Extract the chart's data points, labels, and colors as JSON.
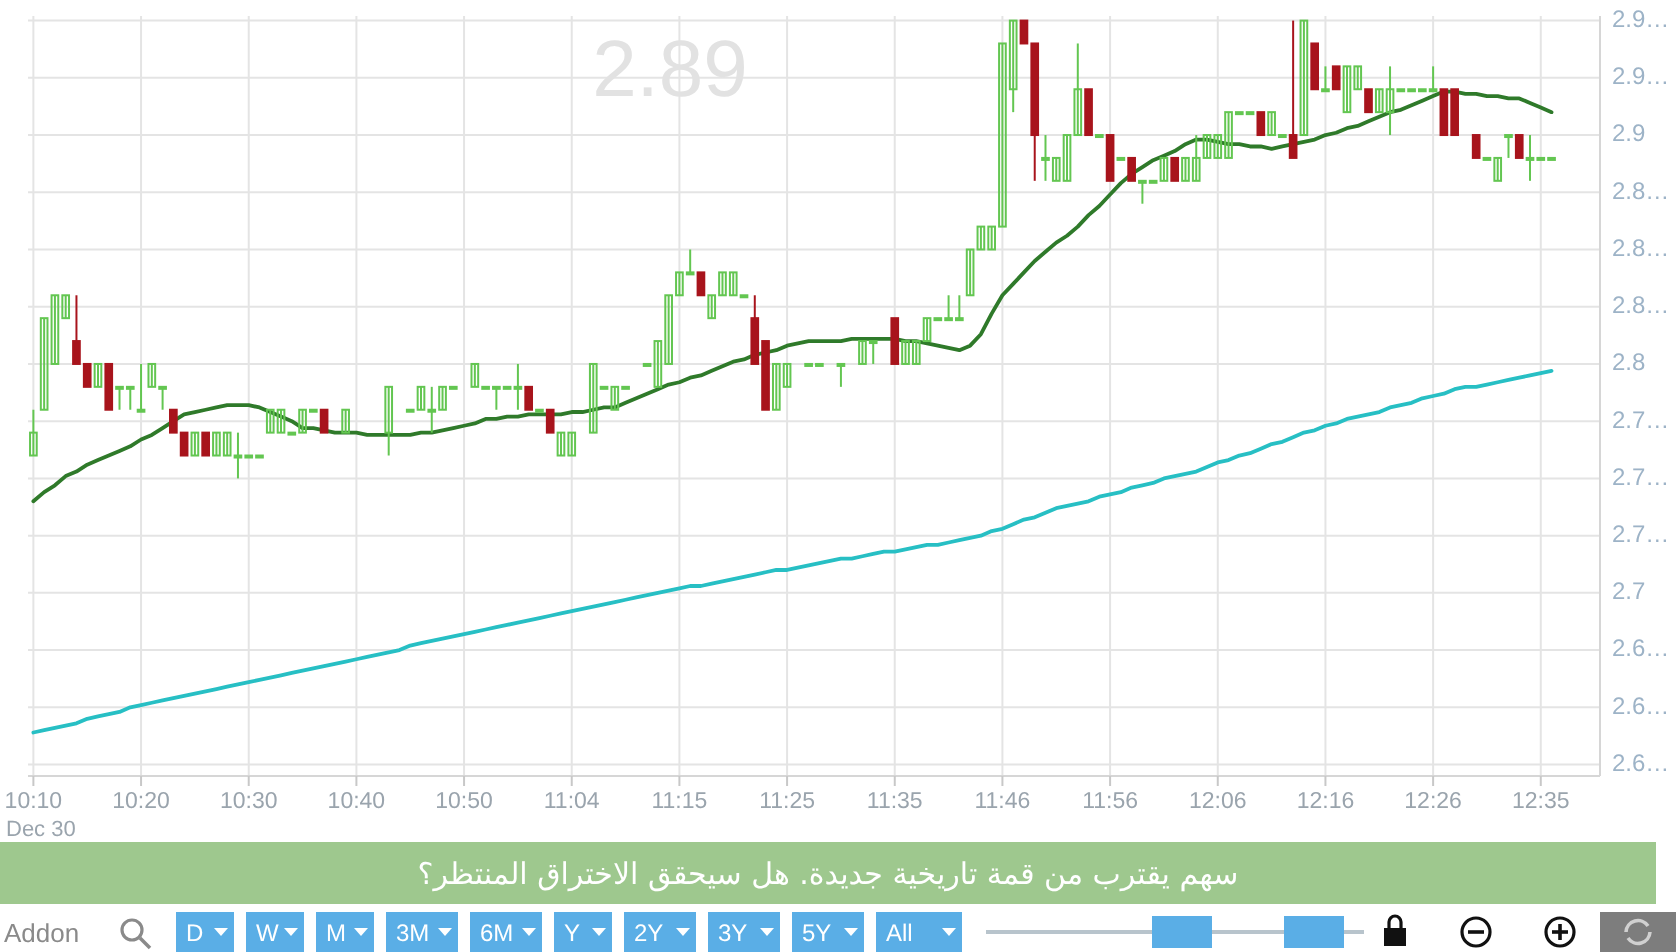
{
  "chart_data": {
    "type": "candlestick",
    "title": "سهم يقترب من قمة تاريخية جديدة. هل سيحقق الاختراق المنتظر؟",
    "annotations": [
      "2.89",
      "Dec 30",
      "Addon",
      "D",
      "W",
      "M",
      "3M",
      "6M",
      "Y",
      "2Y",
      "3Y",
      "5Y",
      "All"
    ],
    "categories": [
      "10:10",
      null,
      null,
      null,
      null,
      null,
      null,
      null,
      null,
      null,
      "10:20",
      null,
      null,
      null,
      null,
      null,
      null,
      null,
      null,
      null,
      "10:30",
      null,
      null,
      null,
      null,
      null,
      null,
      null,
      null,
      null,
      "10:40",
      null,
      null,
      null,
      null,
      null,
      null,
      null,
      null,
      null,
      "10:50",
      null,
      null,
      null,
      null,
      null,
      null,
      null,
      null,
      null,
      "11:04",
      null,
      null,
      null,
      null,
      null,
      null,
      null,
      null,
      null,
      "11:15",
      null,
      null,
      null,
      null,
      null,
      null,
      null,
      null,
      null,
      "11:25",
      null,
      null,
      null,
      null,
      null,
      null,
      null,
      null,
      null,
      "11:35",
      null,
      null,
      null,
      null,
      null,
      null,
      null,
      null,
      null,
      "11:46",
      null,
      null,
      null,
      null,
      null,
      null,
      null,
      null,
      null,
      "11:56",
      null,
      null,
      null,
      null,
      null,
      null,
      null,
      null,
      null,
      "12:06",
      null,
      null,
      null,
      null,
      null,
      null,
      null,
      null,
      null,
      "12:16",
      null,
      null,
      null,
      null,
      null,
      null,
      null,
      null,
      null,
      "12:26",
      null,
      null,
      null,
      null,
      null,
      null,
      null,
      null,
      null,
      "12:35",
      null,
      null,
      null,
      null,
      null
    ],
    "ylim": [
      2.62,
      2.952
    ],
    "yticks": [
      {
        "value": 2.95,
        "label": "2.9…"
      },
      {
        "value": 2.925,
        "label": "2.9…"
      },
      2.9,
      {
        "value": 2.875,
        "label": "2.8…"
      },
      {
        "value": 2.85,
        "label": "2.8…"
      },
      {
        "value": 2.825,
        "label": "2.8…"
      },
      2.8,
      {
        "value": 2.775,
        "label": "2.7…"
      },
      {
        "value": 2.75,
        "label": "2.7…"
      },
      {
        "value": 2.725,
        "label": "2.7…"
      },
      2.7,
      {
        "value": 2.675,
        "label": "2.6…"
      },
      {
        "value": 2.65,
        "label": "2.6…"
      },
      {
        "value": 2.625,
        "label": "2.6…"
      }
    ],
    "grid": true,
    "series": [
      {
        "type": "line",
        "color": "#2f7a2a",
        "values": [
          2.74,
          2.744,
          2.747,
          2.751,
          2.753,
          2.756,
          2.758,
          2.76,
          2.762,
          2.764,
          2.767,
          2.769,
          2.772,
          2.775,
          2.778,
          2.779,
          2.78,
          2.781,
          2.782,
          2.782,
          2.782,
          2.781,
          2.779,
          2.777,
          2.775,
          2.772,
          2.772,
          2.771,
          2.77,
          2.77,
          2.77,
          2.769,
          2.769,
          2.769,
          2.769,
          2.769,
          2.77,
          2.77,
          2.771,
          2.772,
          2.773,
          2.774,
          2.776,
          2.776,
          2.777,
          2.777,
          2.778,
          2.778,
          2.778,
          2.778,
          2.779,
          2.779,
          2.78,
          2.781,
          2.781,
          2.783,
          2.785,
          2.787,
          2.789,
          2.791,
          2.792,
          2.794,
          2.795,
          2.797,
          2.799,
          2.801,
          2.802,
          2.804,
          2.805,
          2.806,
          2.808,
          2.809,
          2.81,
          2.81,
          2.81,
          2.81,
          2.811,
          2.811,
          2.811,
          2.811,
          2.811,
          2.81,
          2.81,
          2.809,
          2.808,
          2.807,
          2.806,
          2.808,
          2.813,
          2.822,
          2.83,
          2.835,
          2.84,
          2.845,
          2.849,
          2.853,
          2.856,
          2.86,
          2.865,
          2.869,
          2.874,
          2.879,
          2.883,
          2.886,
          2.889,
          2.891,
          2.893,
          2.896,
          2.898,
          2.898,
          2.897,
          2.896,
          2.896,
          2.895,
          2.895,
          2.894,
          2.895,
          2.896,
          2.897,
          2.898,
          2.9,
          2.901,
          2.903,
          2.904,
          2.906,
          2.908,
          2.91,
          2.911,
          2.913,
          2.915,
          2.917,
          2.919,
          2.919,
          2.918,
          2.918,
          2.917,
          2.917,
          2.916,
          2.916,
          2.914,
          2.912,
          2.91,
          null,
          null,
          null,
          null
        ]
      },
      {
        "type": "line",
        "color": "#27bfc4",
        "values": [
          2.639,
          2.64,
          2.641,
          2.642,
          2.643,
          2.645,
          2.646,
          2.647,
          2.648,
          2.65,
          2.651,
          2.652,
          2.653,
          2.654,
          2.655,
          2.656,
          2.657,
          2.658,
          2.659,
          2.66,
          2.661,
          2.662,
          2.663,
          2.664,
          2.665,
          2.666,
          2.667,
          2.668,
          2.669,
          2.67,
          2.671,
          2.672,
          2.673,
          2.674,
          2.675,
          2.677,
          2.678,
          2.679,
          2.68,
          2.681,
          2.682,
          2.683,
          2.684,
          2.685,
          2.686,
          2.687,
          2.688,
          2.689,
          2.69,
          2.691,
          2.692,
          2.693,
          2.694,
          2.695,
          2.696,
          2.697,
          2.698,
          2.699,
          2.7,
          2.701,
          2.702,
          2.703,
          2.703,
          2.704,
          2.705,
          2.706,
          2.707,
          2.708,
          2.709,
          2.71,
          2.71,
          2.711,
          2.712,
          2.713,
          2.714,
          2.715,
          2.715,
          2.716,
          2.717,
          2.718,
          2.718,
          2.719,
          2.72,
          2.721,
          2.721,
          2.722,
          2.723,
          2.724,
          2.725,
          2.727,
          2.728,
          2.73,
          2.732,
          2.733,
          2.735,
          2.737,
          2.738,
          2.739,
          2.74,
          2.742,
          2.743,
          2.744,
          2.746,
          2.747,
          2.748,
          2.75,
          2.751,
          2.752,
          2.753,
          2.755,
          2.757,
          2.758,
          2.76,
          2.761,
          2.763,
          2.765,
          2.766,
          2.768,
          2.77,
          2.771,
          2.773,
          2.774,
          2.776,
          2.777,
          2.778,
          2.779,
          2.781,
          2.782,
          2.783,
          2.785,
          2.786,
          2.787,
          2.789,
          2.79,
          2.79,
          2.791,
          2.792,
          2.793,
          2.794,
          2.795,
          2.796,
          2.797,
          null,
          null,
          null,
          null
        ]
      },
      {
        "type": "candlestick",
        "color": "#63c651",
        "ohlc": [
          [
            2.76,
            2.78,
            2.76,
            2.77
          ],
          [
            2.78,
            2.82,
            2.78,
            2.82
          ],
          [
            2.8,
            2.83,
            2.8,
            2.83
          ],
          [
            2.82,
            2.83,
            2.82,
            2.83
          ],
          null,
          null,
          [
            2.79,
            2.8,
            2.79,
            2.8
          ],
          null,
          [
            2.79,
            2.79,
            2.78,
            2.79
          ],
          [
            2.79,
            2.79,
            2.78,
            2.79
          ],
          [
            2.78,
            2.8,
            2.78,
            2.78
          ],
          [
            2.79,
            2.8,
            2.79,
            2.8
          ],
          [
            2.79,
            2.79,
            2.78,
            2.79
          ],
          null,
          null,
          [
            2.76,
            2.77,
            2.76,
            2.77
          ],
          null,
          [
            2.76,
            2.77,
            2.76,
            2.77
          ],
          [
            2.76,
            2.77,
            2.76,
            2.77
          ],
          [
            2.76,
            2.77,
            2.75,
            2.76
          ],
          [
            2.76,
            2.76,
            2.76,
            2.76
          ],
          [
            2.76,
            2.76,
            2.76,
            2.76
          ],
          [
            2.77,
            2.78,
            2.77,
            2.78
          ],
          [
            2.77,
            2.78,
            2.77,
            2.78
          ],
          [
            2.77,
            2.77,
            2.77,
            2.77
          ],
          [
            2.77,
            2.78,
            2.77,
            2.78
          ],
          [
            2.78,
            2.78,
            2.78,
            2.78
          ],
          null,
          null,
          [
            2.77,
            2.78,
            2.77,
            2.78
          ],
          null,
          null,
          null,
          [
            2.77,
            2.79,
            2.76,
            2.79
          ],
          null,
          [
            2.78,
            2.78,
            2.78,
            2.78
          ],
          [
            2.78,
            2.79,
            2.78,
            2.79
          ],
          [
            2.78,
            2.79,
            2.77,
            2.78
          ],
          [
            2.78,
            2.79,
            2.78,
            2.79
          ],
          [
            2.79,
            2.79,
            2.79,
            2.79
          ],
          null,
          [
            2.79,
            2.8,
            2.79,
            2.8
          ],
          [
            2.79,
            2.79,
            2.79,
            2.79
          ],
          [
            2.79,
            2.79,
            2.78,
            2.79
          ],
          [
            2.79,
            2.79,
            2.79,
            2.79
          ],
          [
            2.79,
            2.8,
            2.78,
            2.79
          ],
          null,
          [
            2.78,
            2.78,
            2.78,
            2.78
          ],
          null,
          [
            2.76,
            2.77,
            2.76,
            2.77
          ],
          [
            2.76,
            2.77,
            2.76,
            2.77
          ],
          null,
          [
            2.77,
            2.8,
            2.77,
            2.8
          ],
          [
            2.79,
            2.79,
            2.79,
            2.79
          ],
          [
            2.78,
            2.79,
            2.78,
            2.79
          ],
          [
            2.79,
            2.79,
            2.79,
            2.79
          ],
          null,
          [
            2.8,
            2.8,
            2.8,
            2.8
          ],
          [
            2.79,
            2.81,
            2.79,
            2.81
          ],
          [
            2.8,
            2.83,
            2.8,
            2.83
          ],
          [
            2.83,
            2.84,
            2.83,
            2.84
          ],
          [
            2.84,
            2.85,
            2.84,
            2.84
          ],
          null,
          [
            2.82,
            2.83,
            2.82,
            2.83
          ],
          [
            2.83,
            2.84,
            2.83,
            2.84
          ],
          [
            2.83,
            2.84,
            2.83,
            2.84
          ],
          [
            2.83,
            2.83,
            2.83,
            2.83
          ],
          null,
          null,
          [
            2.78,
            2.8,
            2.78,
            2.8
          ],
          [
            2.79,
            2.8,
            2.79,
            2.8
          ],
          null,
          [
            2.8,
            2.8,
            2.8,
            2.8
          ],
          [
            2.8,
            2.8,
            2.8,
            2.8
          ],
          null,
          [
            2.8,
            2.8,
            2.79,
            2.8
          ],
          null,
          [
            2.8,
            2.81,
            2.8,
            2.81
          ],
          [
            2.81,
            2.81,
            2.8,
            2.81
          ],
          null,
          null,
          [
            2.8,
            2.81,
            2.8,
            2.81
          ],
          [
            2.8,
            2.81,
            2.8,
            2.81
          ],
          [
            2.81,
            2.82,
            2.81,
            2.82
          ],
          [
            2.82,
            2.82,
            2.82,
            2.82
          ],
          [
            2.82,
            2.83,
            2.82,
            2.82
          ],
          [
            2.82,
            2.83,
            2.82,
            2.82
          ],
          [
            2.83,
            2.85,
            2.83,
            2.85
          ],
          [
            2.85,
            2.86,
            2.85,
            2.86
          ],
          [
            2.85,
            2.86,
            2.85,
            2.86
          ],
          [
            2.86,
            2.94,
            2.86,
            2.94
          ],
          [
            2.92,
            2.95,
            2.91,
            2.95
          ],
          null,
          null,
          [
            2.89,
            2.9,
            2.88,
            2.89
          ],
          [
            2.88,
            2.89,
            2.88,
            2.89
          ],
          [
            2.88,
            2.9,
            2.88,
            2.9
          ],
          [
            2.9,
            2.94,
            2.9,
            2.92
          ],
          null,
          [
            2.9,
            2.9,
            2.9,
            2.9
          ],
          null,
          [
            2.89,
            2.89,
            2.89,
            2.89
          ],
          null,
          [
            2.88,
            2.88,
            2.87,
            2.88
          ],
          [
            2.88,
            2.88,
            2.88,
            2.88
          ],
          [
            2.88,
            2.89,
            2.88,
            2.89
          ],
          null,
          [
            2.88,
            2.89,
            2.88,
            2.89
          ],
          [
            2.88,
            2.9,
            2.88,
            2.89
          ],
          [
            2.89,
            2.9,
            2.89,
            2.9
          ],
          [
            2.89,
            2.9,
            2.89,
            2.9
          ],
          [
            2.89,
            2.91,
            2.89,
            2.91
          ],
          [
            2.91,
            2.91,
            2.91,
            2.91
          ],
          [
            2.91,
            2.91,
            2.91,
            2.91
          ],
          null,
          [
            2.9,
            2.91,
            2.9,
            2.91
          ],
          [
            2.9,
            2.9,
            2.9,
            2.9
          ],
          null,
          [
            2.9,
            2.95,
            2.9,
            2.95
          ],
          null,
          [
            2.92,
            2.93,
            2.92,
            2.92
          ],
          null,
          [
            2.91,
            2.93,
            2.91,
            2.93
          ],
          [
            2.92,
            2.93,
            2.92,
            2.93
          ],
          null,
          [
            2.91,
            2.92,
            2.91,
            2.92
          ],
          [
            2.91,
            2.93,
            2.9,
            2.92
          ],
          [
            2.92,
            2.92,
            2.92,
            2.92
          ],
          [
            2.92,
            2.92,
            2.92,
            2.92
          ],
          [
            2.92,
            2.92,
            2.92,
            2.92
          ],
          [
            2.92,
            2.93,
            2.92,
            2.92
          ],
          null,
          null,
          null,
          null,
          [
            2.89,
            2.89,
            2.89,
            2.89
          ],
          [
            2.88,
            2.89,
            2.88,
            2.89
          ],
          [
            2.9,
            2.9,
            2.89,
            2.9
          ],
          null,
          [
            2.89,
            2.9,
            2.88,
            2.89
          ],
          [
            2.89,
            2.89,
            2.89,
            2.89
          ],
          [
            2.89,
            2.89,
            2.89,
            2.89
          ],
          null,
          null,
          null,
          null
        ]
      },
      {
        "type": "candlestick",
        "color": "#a8141c",
        "ohlc": [
          null,
          null,
          null,
          null,
          [
            2.81,
            2.83,
            2.8,
            2.8
          ],
          [
            2.8,
            2.8,
            2.79,
            2.79
          ],
          null,
          [
            2.8,
            2.8,
            2.78,
            2.78
          ],
          null,
          null,
          null,
          null,
          null,
          [
            2.78,
            2.78,
            2.77,
            2.77
          ],
          [
            2.77,
            2.77,
            2.76,
            2.76
          ],
          null,
          [
            2.77,
            2.77,
            2.76,
            2.76
          ],
          null,
          null,
          null,
          null,
          null,
          null,
          null,
          null,
          null,
          null,
          [
            2.78,
            2.78,
            2.77,
            2.77
          ],
          null,
          null,
          null,
          null,
          null,
          null,
          null,
          null,
          null,
          null,
          null,
          null,
          null,
          null,
          null,
          null,
          null,
          null,
          [
            2.79,
            2.79,
            2.78,
            2.78
          ],
          null,
          [
            2.78,
            2.78,
            2.77,
            2.77
          ],
          null,
          null,
          null,
          null,
          null,
          null,
          null,
          null,
          null,
          null,
          null,
          null,
          null,
          [
            2.84,
            2.84,
            2.83,
            2.83
          ],
          null,
          null,
          null,
          null,
          [
            2.82,
            2.83,
            2.8,
            2.8
          ],
          [
            2.81,
            2.81,
            2.78,
            2.78
          ],
          null,
          null,
          null,
          null,
          null,
          null,
          null,
          null,
          null,
          null,
          null,
          [
            2.82,
            2.82,
            2.8,
            2.8
          ],
          null,
          null,
          null,
          null,
          null,
          null,
          null,
          null,
          null,
          null,
          null,
          [
            2.95,
            2.95,
            2.94,
            2.94
          ],
          [
            2.94,
            2.94,
            2.88,
            2.9
          ],
          null,
          null,
          null,
          null,
          [
            2.92,
            2.92,
            2.9,
            2.9
          ],
          null,
          [
            2.9,
            2.9,
            2.88,
            2.88
          ],
          null,
          [
            2.89,
            2.89,
            2.88,
            2.88
          ],
          null,
          null,
          null,
          [
            2.89,
            2.89,
            2.88,
            2.88
          ],
          null,
          null,
          null,
          null,
          null,
          null,
          null,
          [
            2.91,
            2.91,
            2.9,
            2.9
          ],
          null,
          null,
          [
            2.9,
            2.95,
            2.89,
            2.89
          ],
          null,
          [
            2.94,
            2.94,
            2.92,
            2.92
          ],
          null,
          [
            2.93,
            2.93,
            2.92,
            2.92
          ],
          null,
          null,
          [
            2.92,
            2.92,
            2.91,
            2.91
          ],
          null,
          null,
          null,
          null,
          null,
          null,
          [
            2.92,
            2.92,
            2.9,
            2.9
          ],
          [
            2.92,
            2.92,
            2.9,
            2.9
          ],
          null,
          [
            2.9,
            2.9,
            2.89,
            2.89
          ],
          null,
          null,
          null,
          [
            2.9,
            2.9,
            2.89,
            2.89
          ],
          null,
          null,
          null,
          null,
          null,
          null,
          null
        ]
      }
    ]
  }
}
